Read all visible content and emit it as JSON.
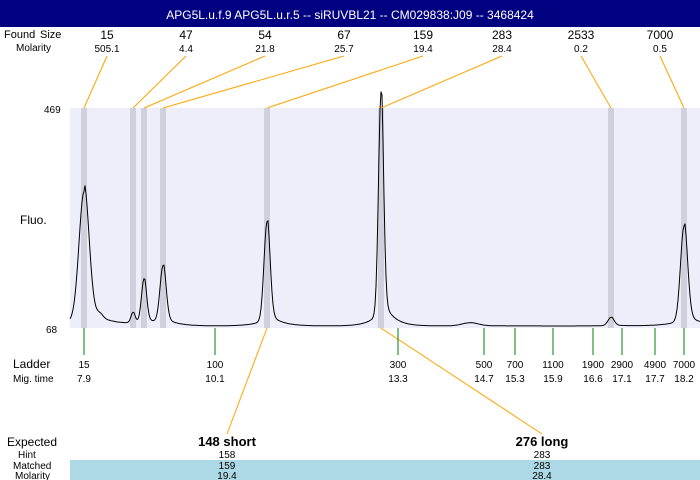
{
  "title": "APG5L.u.f.9  APG5L.u.r.5 -- siRUVBL21 -- CM029838:J09 -- 3468424",
  "labels": {
    "size": "Size",
    "found": "Found",
    "molarity": "Molarity",
    "fluo": "Fluo.",
    "ladder": "Ladder",
    "mig_time": "Mig. time",
    "expected": "Expected",
    "hint": "Hint",
    "matched": "Matched",
    "molarity2": "Molarity"
  },
  "colors": {
    "title_bar": "#000080",
    "plot_bg": "#eeeefa",
    "band": "#d0d0dc",
    "peak_link": "#ffa500",
    "ladder_tick": "#008000",
    "matched_row": "#add8e6"
  },
  "chart_data": {
    "type": "line",
    "ylabel": "Fluo.",
    "ylim": [
      68,
      469
    ],
    "y_ticks": [
      "469",
      "68"
    ],
    "peaks": [
      {
        "size": "15",
        "molarity": "505.1"
      },
      {
        "size": "47",
        "molarity": "4.4"
      },
      {
        "size": "54",
        "molarity": "21.8"
      },
      {
        "size": "67",
        "molarity": "25.7"
      },
      {
        "size": "159",
        "molarity": "19.4"
      },
      {
        "size": "283",
        "molarity": "28.4"
      },
      {
        "size": "2533",
        "molarity": "0.2"
      },
      {
        "size": "7000",
        "molarity": "0.5"
      }
    ],
    "ladder": [
      {
        "size": "15",
        "time": "7.9"
      },
      {
        "size": "100",
        "time": "10.1"
      },
      {
        "size": "300",
        "time": "13.3"
      },
      {
        "size": "500",
        "time": "14.7"
      },
      {
        "size": "700",
        "time": "15.3"
      },
      {
        "size": "1100",
        "time": "15.9"
      },
      {
        "size": "1900",
        "time": "16.6"
      },
      {
        "size": "2900",
        "time": "17.1"
      },
      {
        "size": "4900",
        "time": "17.7"
      },
      {
        "size": "7000",
        "time": "18.2"
      }
    ],
    "expected": [
      {
        "label": "148 short",
        "hint": "158",
        "matched": "159",
        "molarity": "19.4"
      },
      {
        "label": "276 long",
        "hint": "283",
        "matched": "283",
        "molarity": "28.4"
      }
    ]
  }
}
